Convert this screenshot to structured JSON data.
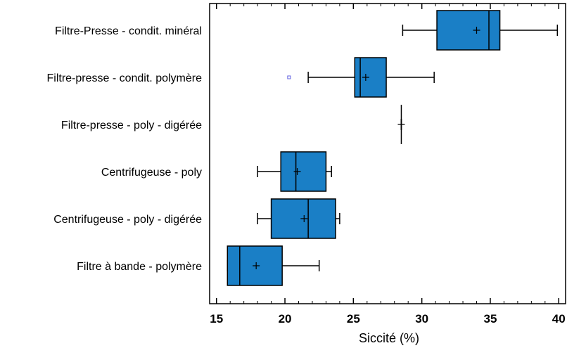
{
  "chart_data": {
    "type": "boxplot",
    "orientation": "horizontal",
    "xlabel": "Siccité (%)",
    "xlim": [
      14.5,
      40.5
    ],
    "xticks": [
      15,
      20,
      25,
      30,
      35,
      40
    ],
    "grid": false,
    "legend": "none",
    "colors": {
      "box_fill": "#1a7fc6",
      "line": "#000000",
      "outlier": "#6060e0"
    },
    "categories": [
      "Filtre-Presse - condit. minéral",
      "Filtre-presse - condit. polymère",
      "Filtre-presse - poly - digérée",
      "Centrifugeuse - poly",
      "Centrifugeuse - poly - digérée",
      "Filtre à bande - polymère"
    ],
    "boxes": [
      {
        "whisker_low": 28.6,
        "q1": 31.1,
        "median": 34.9,
        "q3": 35.7,
        "whisker_high": 39.9,
        "mean": 34.0,
        "outliers": []
      },
      {
        "whisker_low": 21.7,
        "q1": 25.1,
        "median": 25.5,
        "q3": 27.4,
        "whisker_high": 30.9,
        "mean": 25.9,
        "outliers": [
          20.3
        ]
      },
      {
        "whisker_low": 28.5,
        "q1": 28.5,
        "median": 28.5,
        "q3": 28.5,
        "whisker_high": 28.5,
        "mean": 28.5,
        "outliers": []
      },
      {
        "whisker_low": 18.0,
        "q1": 19.7,
        "median": 20.8,
        "q3": 23.0,
        "whisker_high": 23.4,
        "mean": 20.9,
        "outliers": []
      },
      {
        "whisker_low": 18.0,
        "q1": 19.0,
        "median": 21.7,
        "q3": 23.7,
        "whisker_high": 24.0,
        "mean": 21.4,
        "outliers": []
      },
      {
        "whisker_low": 15.8,
        "q1": 15.8,
        "median": 16.7,
        "q3": 19.8,
        "whisker_high": 22.5,
        "mean": 17.9,
        "outliers": []
      }
    ]
  }
}
